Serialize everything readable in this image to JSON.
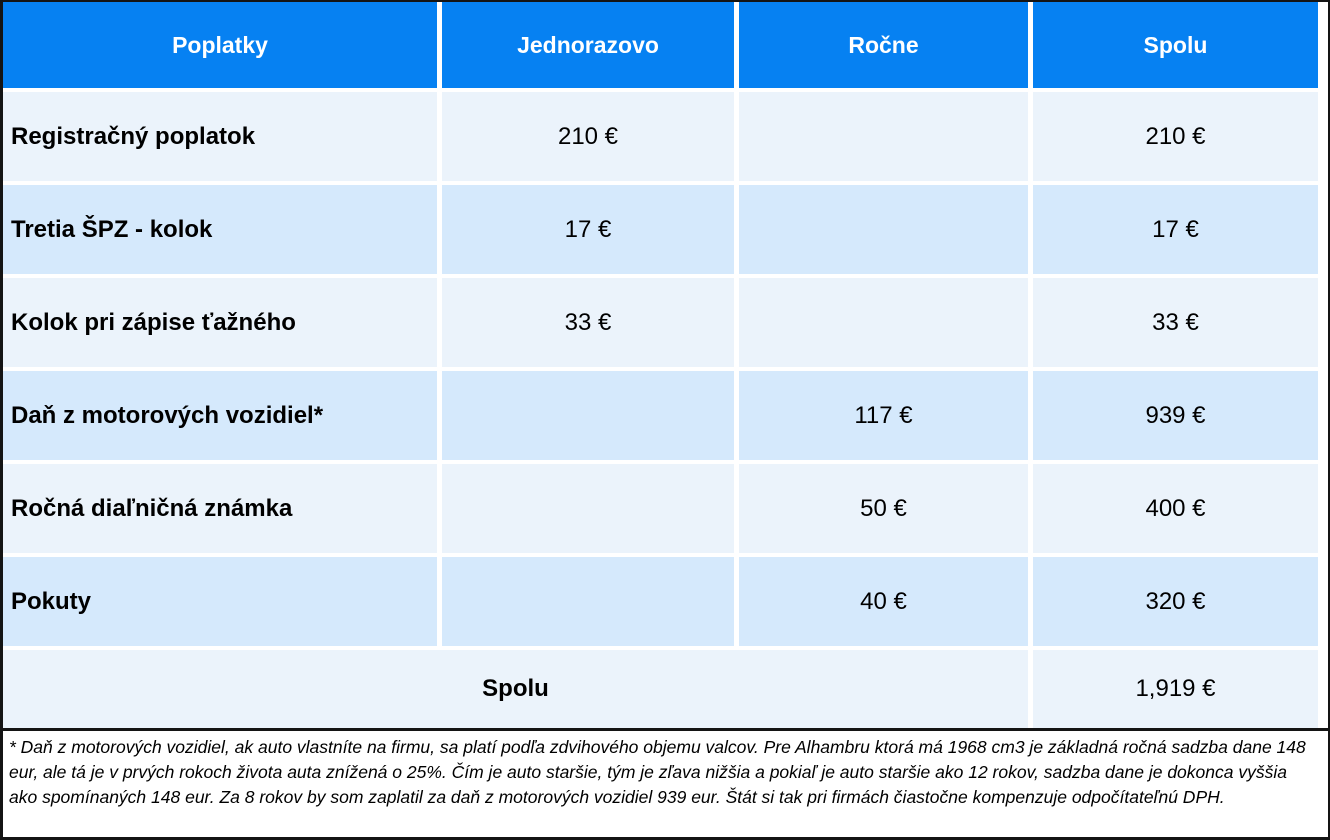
{
  "chart_data": {
    "type": "table",
    "columns": [
      "Poplatky",
      "Jednorazovo",
      "Ročne",
      "Spolu"
    ],
    "rows": [
      [
        "Registračný poplatok",
        "210 €",
        "",
        "210 €"
      ],
      [
        "Tretia ŠPZ - kolok",
        "17 €",
        "",
        "17 €"
      ],
      [
        "Kolok pri zápise ťažného",
        "33 €",
        "",
        "33 €"
      ],
      [
        "Daň z motorových vozidiel*",
        "",
        "117 €",
        "939 €"
      ],
      [
        "Ročná diaľničná známka",
        "",
        "50 €",
        "400 €"
      ],
      [
        "Pokuty",
        "",
        "40 €",
        "320 €"
      ]
    ],
    "total_row": {
      "label": "Spolu",
      "value": "1,919 €"
    },
    "footnote": "* Daň z motorových vozidiel, ak auto vlastníte na firmu, sa platí podľa zdvihového objemu valcov. Pre Alhambru ktorá má 1968 cm3 je základná ročná sadzba dane 148 eur, ale tá je v prvých rokoch života auta znížená o 25%. Čím je auto staršie, tým je zľava nižšia a pokiaľ je auto staršie ako 12 rokov, sadzba dane je dokonca vyššia ako spomínaných 148 eur. Za 8 rokov by som zaplatil za daň z motorových vozidiel 939 eur. Štát si tak pri firmách čiastočne kompenzuje odpočítateľnú DPH.",
    "layout": {
      "header_position": "top",
      "grid": "white gridlines between cells",
      "row_striping": "alternating light/dark blue"
    },
    "colors": {
      "header_bg": "#0681F2",
      "header_text": "#FFFFFF",
      "row_light_bg": "#EBF3FB",
      "row_dark_bg": "#D5E9FC",
      "body_text": "#000000",
      "border": "#141414"
    }
  }
}
